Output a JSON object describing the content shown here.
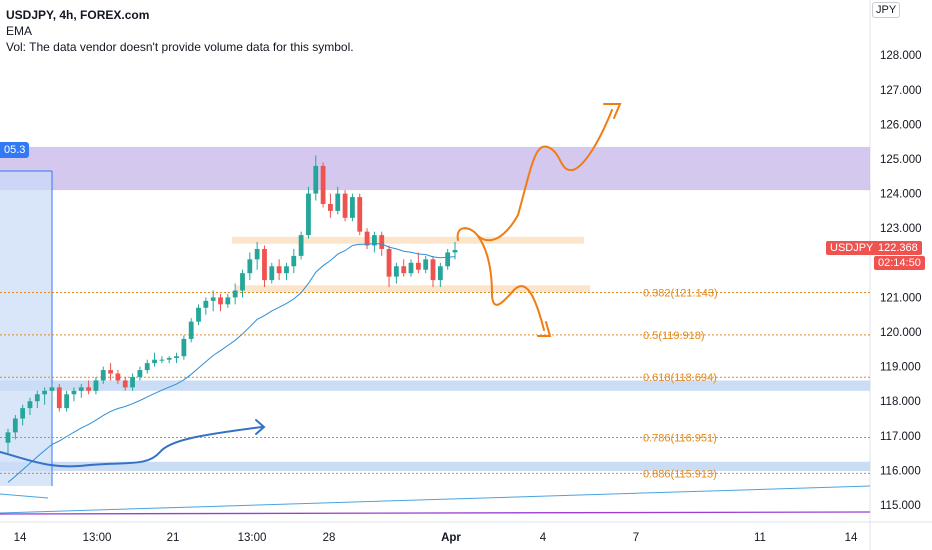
{
  "header": {
    "title": "USDJPY, 4h, FOREX.com",
    "ema": "EMA",
    "vol": "Vol: The data vendor doesn't provide volume data for this symbol."
  },
  "currency": "JPY",
  "symbol_tag": "USDJPY",
  "last_price": "122.368",
  "countdown": "02:14:50",
  "range_tag": "05.3",
  "colors": {
    "up": "#26a69a",
    "down": "#ef5350",
    "ema": "#2e8fd8",
    "fib": "#e08a1e",
    "sketch": "#f07d14",
    "blue_sketch": "#3572c6",
    "resistance_zone": "#c7b6ea",
    "orange_zone": "#fbdcb8",
    "blue_zone": "#b9d2f2",
    "long_line": "#4aa3df",
    "purple_line": "#9c3fd1"
  },
  "chart_data": {
    "type": "candlestick",
    "symbol": "USDJPY",
    "timeframe": "4h",
    "y_ticks": [
      "115.000",
      "116.000",
      "117.000",
      "118.000",
      "119.000",
      "120.000",
      "121.000",
      "122.000",
      "123.000",
      "124.000",
      "125.000",
      "126.000",
      "127.000",
      "128.000"
    ],
    "x_ticks": [
      "14",
      "13:00",
      "21",
      "13:00",
      "28",
      "Apr",
      "4",
      "7",
      "11",
      "14"
    ],
    "ylim": [
      114.6,
      129.2
    ],
    "fib_levels": [
      {
        "label": "0.382(121.143)",
        "value": 121.143
      },
      {
        "label": "0.5(119.918)",
        "value": 119.918
      },
      {
        "label": "0.618(118.694)",
        "value": 118.694
      },
      {
        "label": "0.786(116.951)",
        "value": 116.951
      },
      {
        "label": "0.886(115.913)",
        "value": 115.913
      }
    ],
    "zones": [
      {
        "kind": "resistance",
        "from": 124.1,
        "to": 125.35
      },
      {
        "kind": "orange",
        "from": 122.55,
        "to": 122.75
      },
      {
        "kind": "orange",
        "from": 121.15,
        "to": 121.35
      },
      {
        "kind": "blue",
        "from": 118.3,
        "to": 118.6
      },
      {
        "kind": "blue",
        "from": 115.98,
        "to": 116.25
      }
    ],
    "candles": [
      [
        116.8,
        117.2,
        116.5,
        117.1
      ],
      [
        117.1,
        117.6,
        116.9,
        117.5
      ],
      [
        117.5,
        117.9,
        117.3,
        117.8
      ],
      [
        117.8,
        118.1,
        117.6,
        118.0
      ],
      [
        118.0,
        118.3,
        117.8,
        118.2
      ],
      [
        118.2,
        118.4,
        117.9,
        118.3
      ],
      [
        118.3,
        118.5,
        118.0,
        118.4
      ],
      [
        118.4,
        118.5,
        117.7,
        117.8
      ],
      [
        117.8,
        118.3,
        117.7,
        118.2
      ],
      [
        118.2,
        118.4,
        118.0,
        118.3
      ],
      [
        118.3,
        118.5,
        118.1,
        118.4
      ],
      [
        118.4,
        118.6,
        118.2,
        118.3
      ],
      [
        118.3,
        118.7,
        118.2,
        118.6
      ],
      [
        118.6,
        119.0,
        118.5,
        118.9
      ],
      [
        118.9,
        119.1,
        118.6,
        118.8
      ],
      [
        118.8,
        118.9,
        118.5,
        118.6
      ],
      [
        118.6,
        118.7,
        118.3,
        118.4
      ],
      [
        118.4,
        118.8,
        118.3,
        118.7
      ],
      [
        118.7,
        119.0,
        118.6,
        118.9
      ],
      [
        118.9,
        119.2,
        118.8,
        119.1
      ],
      [
        119.1,
        119.4,
        119.0,
        119.2
      ],
      [
        119.2,
        119.3,
        119.1,
        119.2
      ],
      [
        119.2,
        119.3,
        119.1,
        119.25
      ],
      [
        119.25,
        119.4,
        119.1,
        119.3
      ],
      [
        119.3,
        119.9,
        119.2,
        119.8
      ],
      [
        119.8,
        120.4,
        119.7,
        120.3
      ],
      [
        120.3,
        120.8,
        120.2,
        120.7
      ],
      [
        120.7,
        121.0,
        120.5,
        120.9
      ],
      [
        120.9,
        121.2,
        120.6,
        121.0
      ],
      [
        121.0,
        121.1,
        120.6,
        120.8
      ],
      [
        120.8,
        121.1,
        120.7,
        121.0
      ],
      [
        121.0,
        121.4,
        120.8,
        121.2
      ],
      [
        121.2,
        121.8,
        121.0,
        121.7
      ],
      [
        121.7,
        122.3,
        121.5,
        122.1
      ],
      [
        122.1,
        122.6,
        121.8,
        122.4
      ],
      [
        122.4,
        122.5,
        121.3,
        121.5
      ],
      [
        121.5,
        122.0,
        121.4,
        121.9
      ],
      [
        121.9,
        122.1,
        121.5,
        121.7
      ],
      [
        121.7,
        122.0,
        121.5,
        121.9
      ],
      [
        121.9,
        122.4,
        121.7,
        122.2
      ],
      [
        122.2,
        122.9,
        122.1,
        122.8
      ],
      [
        122.8,
        124.2,
        122.7,
        124.0
      ],
      [
        124.0,
        125.1,
        123.8,
        124.8
      ],
      [
        124.8,
        124.9,
        123.6,
        123.7
      ],
      [
        123.7,
        124.0,
        123.3,
        123.5
      ],
      [
        123.5,
        124.2,
        123.4,
        124.0
      ],
      [
        124.0,
        124.1,
        123.2,
        123.3
      ],
      [
        123.3,
        124.0,
        123.2,
        123.9
      ],
      [
        123.9,
        124.0,
        122.8,
        122.9
      ],
      [
        122.9,
        123.0,
        122.4,
        122.5
      ],
      [
        122.5,
        122.9,
        122.3,
        122.8
      ],
      [
        122.8,
        122.9,
        122.2,
        122.4
      ],
      [
        122.4,
        122.5,
        121.3,
        121.6
      ],
      [
        121.6,
        122.0,
        121.4,
        121.9
      ],
      [
        121.9,
        122.1,
        121.6,
        121.7
      ],
      [
        121.7,
        122.1,
        121.6,
        122.0
      ],
      [
        122.0,
        122.3,
        121.7,
        121.8
      ],
      [
        121.8,
        122.2,
        121.7,
        122.1
      ],
      [
        122.1,
        122.2,
        121.3,
        121.5
      ],
      [
        121.5,
        122.0,
        121.3,
        121.9
      ],
      [
        121.9,
        122.4,
        121.8,
        122.3
      ],
      [
        122.3,
        122.6,
        122.1,
        122.37
      ]
    ]
  }
}
